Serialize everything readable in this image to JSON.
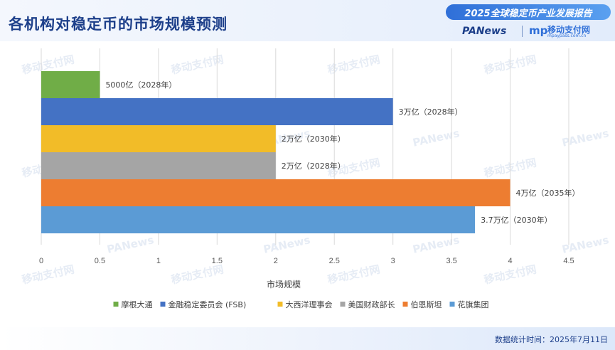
{
  "header": {
    "title": "各机构对稳定币的市场规模预测",
    "report": "2025全球稳定币产业发展报告",
    "brand_left": "PANews",
    "brand_right_logo": "mp",
    "brand_right": "移动支付网",
    "brand_right_sub": "mpaypass.com.cn"
  },
  "footer": {
    "stats_time": "数据统计时间：2025年7月11日"
  },
  "watermarks": [
    "移动支付网",
    "PANews"
  ],
  "chart_data": {
    "type": "bar",
    "orientation": "horizontal",
    "xlabel": "市场规模",
    "xlim": [
      0,
      4.5
    ],
    "xticks": [
      "0",
      "0.5",
      "1",
      "1.5",
      "2",
      "2.5",
      "3",
      "3.5",
      "4",
      "4.5"
    ],
    "grid": true,
    "legend_position": "bottom",
    "series": [
      {
        "name": "摩根大通",
        "value": 0.5,
        "label": "5000亿（2028年）",
        "color": "#70ad47"
      },
      {
        "name": "金融稳定委员会 (FSB)",
        "value": 3,
        "label": "3万亿（2028年）",
        "color": "#4472c4"
      },
      {
        "name": "大西洋理事会",
        "value": 2,
        "label": "2万亿（2030年）",
        "color": "#f2bc28"
      },
      {
        "name": "美国财政部长",
        "value": 2,
        "label": "2万亿（2028年）",
        "color": "#a5a5a5"
      },
      {
        "name": "伯恩斯坦",
        "value": 4,
        "label": "4万亿（2035年）",
        "color": "#ed7d31"
      },
      {
        "name": "花旗集团",
        "value": 3.7,
        "label": "3.7万亿（2030年）",
        "color": "#5b9bd5"
      }
    ]
  }
}
